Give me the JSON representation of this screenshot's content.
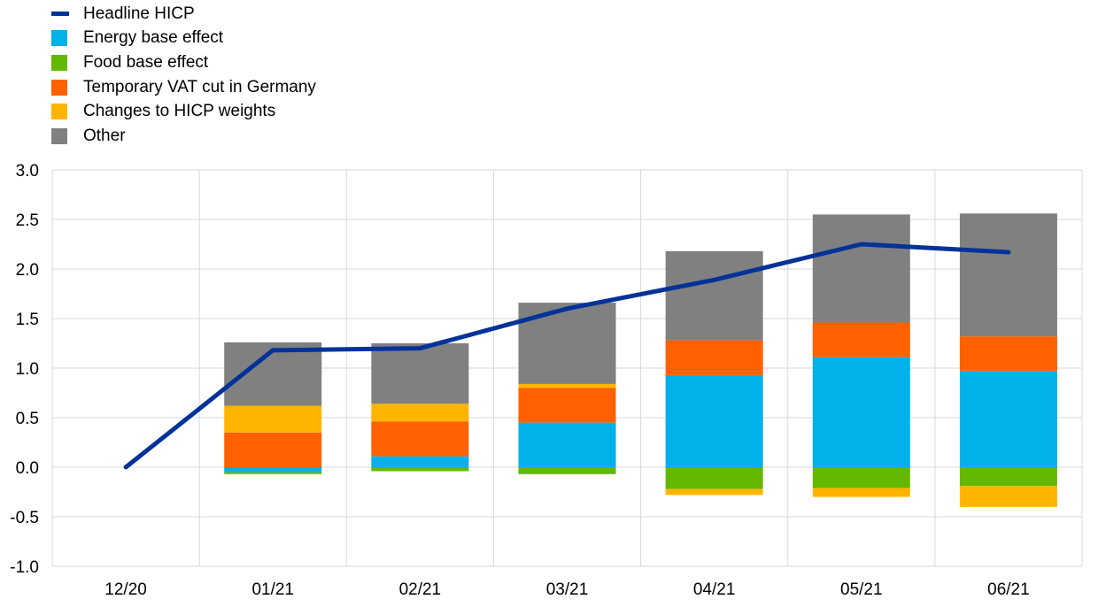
{
  "chart_data": {
    "type": "bar",
    "stacked": true,
    "categories": [
      "12/20",
      "01/21",
      "02/21",
      "03/21",
      "04/21",
      "05/21",
      "06/21"
    ],
    "ylim": [
      -1.0,
      3.0
    ],
    "yticks": [
      "3.0",
      "2.5",
      "2.0",
      "1.5",
      "1.0",
      "0.5",
      "0.0",
      "-0.5",
      "-1.0"
    ],
    "ytick_values": [
      3.0,
      2.5,
      2.0,
      1.5,
      1.0,
      0.5,
      0.0,
      -0.5,
      -1.0
    ],
    "grid": true,
    "legend_position": "top-left",
    "series": [
      {
        "name": "Energy base effect",
        "color": "#00b1ea",
        "values": [
          0,
          -0.05,
          0.11,
          0.45,
          0.93,
          1.11,
          0.97
        ]
      },
      {
        "name": "Food base effect",
        "color": "#65b800",
        "values": [
          0,
          -0.02,
          -0.04,
          -0.07,
          -0.22,
          -0.21,
          -0.19
        ]
      },
      {
        "name": "Temporary VAT cut in Germany",
        "color": "#ff6000",
        "values": [
          0,
          0.35,
          0.35,
          0.35,
          0.35,
          0.35,
          0.35
        ]
      },
      {
        "name": "Changes to HICP weights",
        "color": "#ffb400",
        "values": [
          0,
          0.27,
          0.18,
          0.04,
          -0.06,
          -0.09,
          -0.21
        ]
      },
      {
        "name": "Other",
        "color": "#808080",
        "values": [
          0,
          0.64,
          0.61,
          0.82,
          0.9,
          1.09,
          1.24
        ]
      }
    ],
    "line_series": {
      "name": "Headline HICP",
      "color": "#003299",
      "values": [
        0.0,
        1.18,
        1.2,
        1.6,
        1.89,
        2.25,
        2.17
      ]
    }
  },
  "legend": [
    {
      "label": "Headline HICP",
      "kind": "line",
      "color": "#003299"
    },
    {
      "label": "Energy base effect",
      "kind": "box",
      "color": "#00b1ea"
    },
    {
      "label": "Food base effect",
      "kind": "box",
      "color": "#65b800"
    },
    {
      "label": "Temporary VAT cut in Germany",
      "kind": "box",
      "color": "#ff6000"
    },
    {
      "label": "Changes to HICP weights",
      "kind": "box",
      "color": "#ffb400"
    },
    {
      "label": "Other",
      "kind": "box",
      "color": "#808080"
    }
  ]
}
